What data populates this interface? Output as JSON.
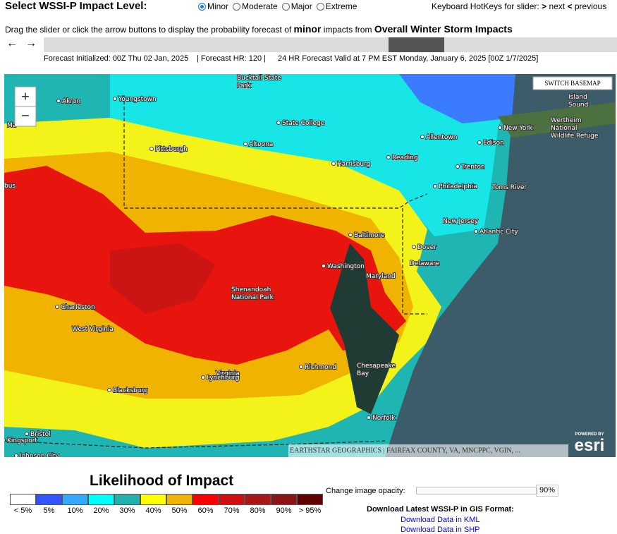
{
  "header": {
    "select_label": "Select WSSI-P Impact Level:",
    "levels": [
      "Minor",
      "Moderate",
      "Major",
      "Extreme"
    ],
    "selected_level": 0,
    "hotkeys": {
      "text": "Keyboard HotKeys for slider:",
      "next_key": ">",
      "next": "next",
      "prev_key": "<",
      "prev": "previous"
    }
  },
  "instructions": {
    "before": "Drag the slider or click the arrow buttons to display the probability forecast of",
    "level": "minor",
    "middle": "impacts from",
    "product": "Overall Winter Storm Impacts"
  },
  "slider": {
    "prev_button": "←",
    "next_button": "→"
  },
  "forecast_info": {
    "initialized": "Forecast Initialized: 00Z Thu 02 Jan, 2025",
    "hour": "| Forecast HR: 120 |",
    "valid": "24 HR Forecast Valid at 7 PM EST Monday, January 6, 2025 [00Z 1/7/2025]"
  },
  "map": {
    "zoom_in": "+",
    "zoom_out": "−",
    "switch_basemap": "SWITCH BASEMAP",
    "attribution": "EARTHSTAR GEOGRAPHICS | FAIRFAX COUNTY, VA, MNCPPC, VGIN, ...",
    "powered_by": "POWERED BY",
    "esri": "esri",
    "labels": [
      [
        "Akron"
      ],
      [
        "Youngstown"
      ],
      [
        "Pittsburgh"
      ],
      [
        "State College"
      ],
      [
        "Altoona"
      ],
      [
        "Harrisburg"
      ],
      [
        "Reading"
      ],
      [
        "Allentown"
      ],
      [
        "New York"
      ],
      [
        "Edison"
      ],
      [
        "Trenton"
      ],
      [
        "Philadelphia"
      ],
      [
        "Toms River"
      ],
      [
        "New Jersey"
      ],
      [
        "Atlantic City"
      ],
      [
        "Baltimore"
      ],
      [
        "Dover"
      ],
      [
        "Delaware"
      ],
      [
        "Washington"
      ],
      [
        "Maryland"
      ],
      [
        "Shenandoah",
        "National Park"
      ],
      [
        "Charleston"
      ],
      [
        "West Virginia"
      ],
      [
        "Richmond"
      ],
      [
        "Virginia"
      ],
      [
        "Lynchburg"
      ],
      [
        "Blacksburg"
      ],
      [
        "Chesapeake",
        "Bay"
      ],
      [
        "Norfolk"
      ],
      [
        "Bristol"
      ],
      [
        "Kingsport"
      ],
      [
        "Johnson City"
      ],
      [
        "Bucktail State",
        "Park"
      ],
      [
        "Wertheim",
        "National",
        "Wildlife Refuge"
      ],
      [
        "Island",
        "Sound"
      ],
      [
        "Ma"
      ],
      [
        "bus"
      ]
    ]
  },
  "legend": {
    "title": "Likelihood of Impact",
    "items": [
      {
        "label": "< 5%",
        "color": "#ffffff"
      },
      {
        "label": "5%",
        "color": "#3355ff"
      },
      {
        "label": "10%",
        "color": "#33aaff"
      },
      {
        "label": "20%",
        "color": "#00ffff"
      },
      {
        "label": "30%",
        "color": "#20b2aa"
      },
      {
        "label": "40%",
        "color": "#ffff00"
      },
      {
        "label": "50%",
        "color": "#f0b400"
      },
      {
        "label": "60%",
        "color": "#ff0000"
      },
      {
        "label": "70%",
        "color": "#d01010"
      },
      {
        "label": "80%",
        "color": "#a81818"
      },
      {
        "label": "90%",
        "color": "#8b1515"
      },
      {
        "label": "> 95%",
        "color": "#600000"
      }
    ]
  },
  "opacity": {
    "label": "Change image opacity:",
    "value": "90%"
  },
  "downloads": {
    "title": "Download Latest WSSI-P in GIS Format:",
    "links": [
      "Download Data in KML",
      "Download Data in SHP"
    ]
  }
}
